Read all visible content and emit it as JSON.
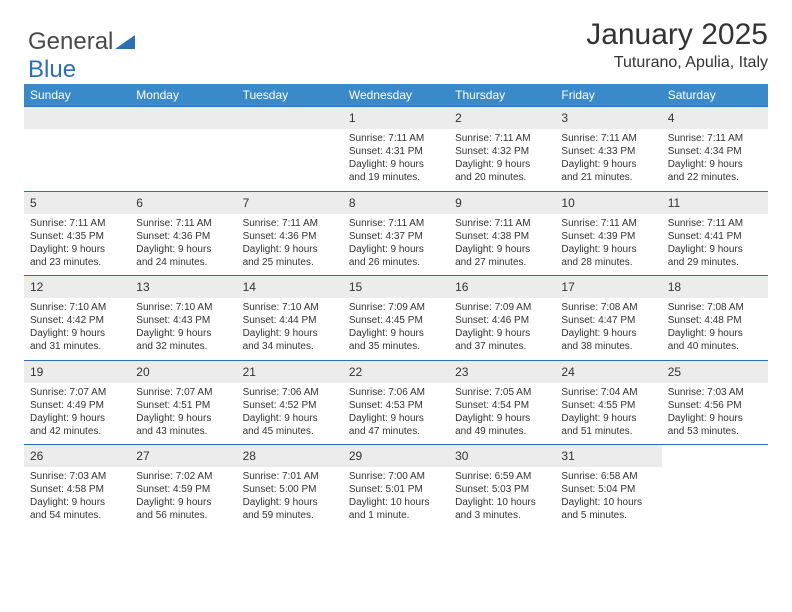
{
  "logo": {
    "text1": "General",
    "text2": "Blue"
  },
  "title": "January 2025",
  "subtitle": "Tuturano, Apulia, Italy",
  "colors": {
    "header_bg": "#3a8ac9",
    "header_border": "#2d6fb5",
    "daynum_bg": "#ececec",
    "text": "#333333",
    "logo_gray": "#4a4a4a",
    "logo_blue": "#2d6fb5"
  },
  "weekdays": [
    "Sunday",
    "Monday",
    "Tuesday",
    "Wednesday",
    "Thursday",
    "Friday",
    "Saturday"
  ],
  "weeks": [
    [
      null,
      null,
      null,
      {
        "n": "1",
        "sr": "Sunrise: 7:11 AM",
        "ss": "Sunset: 4:31 PM",
        "d1": "Daylight: 9 hours",
        "d2": "and 19 minutes."
      },
      {
        "n": "2",
        "sr": "Sunrise: 7:11 AM",
        "ss": "Sunset: 4:32 PM",
        "d1": "Daylight: 9 hours",
        "d2": "and 20 minutes."
      },
      {
        "n": "3",
        "sr": "Sunrise: 7:11 AM",
        "ss": "Sunset: 4:33 PM",
        "d1": "Daylight: 9 hours",
        "d2": "and 21 minutes."
      },
      {
        "n": "4",
        "sr": "Sunrise: 7:11 AM",
        "ss": "Sunset: 4:34 PM",
        "d1": "Daylight: 9 hours",
        "d2": "and 22 minutes."
      }
    ],
    [
      {
        "n": "5",
        "sr": "Sunrise: 7:11 AM",
        "ss": "Sunset: 4:35 PM",
        "d1": "Daylight: 9 hours",
        "d2": "and 23 minutes."
      },
      {
        "n": "6",
        "sr": "Sunrise: 7:11 AM",
        "ss": "Sunset: 4:36 PM",
        "d1": "Daylight: 9 hours",
        "d2": "and 24 minutes."
      },
      {
        "n": "7",
        "sr": "Sunrise: 7:11 AM",
        "ss": "Sunset: 4:36 PM",
        "d1": "Daylight: 9 hours",
        "d2": "and 25 minutes."
      },
      {
        "n": "8",
        "sr": "Sunrise: 7:11 AM",
        "ss": "Sunset: 4:37 PM",
        "d1": "Daylight: 9 hours",
        "d2": "and 26 minutes."
      },
      {
        "n": "9",
        "sr": "Sunrise: 7:11 AM",
        "ss": "Sunset: 4:38 PM",
        "d1": "Daylight: 9 hours",
        "d2": "and 27 minutes."
      },
      {
        "n": "10",
        "sr": "Sunrise: 7:11 AM",
        "ss": "Sunset: 4:39 PM",
        "d1": "Daylight: 9 hours",
        "d2": "and 28 minutes."
      },
      {
        "n": "11",
        "sr": "Sunrise: 7:11 AM",
        "ss": "Sunset: 4:41 PM",
        "d1": "Daylight: 9 hours",
        "d2": "and 29 minutes."
      }
    ],
    [
      {
        "n": "12",
        "sr": "Sunrise: 7:10 AM",
        "ss": "Sunset: 4:42 PM",
        "d1": "Daylight: 9 hours",
        "d2": "and 31 minutes."
      },
      {
        "n": "13",
        "sr": "Sunrise: 7:10 AM",
        "ss": "Sunset: 4:43 PM",
        "d1": "Daylight: 9 hours",
        "d2": "and 32 minutes."
      },
      {
        "n": "14",
        "sr": "Sunrise: 7:10 AM",
        "ss": "Sunset: 4:44 PM",
        "d1": "Daylight: 9 hours",
        "d2": "and 34 minutes."
      },
      {
        "n": "15",
        "sr": "Sunrise: 7:09 AM",
        "ss": "Sunset: 4:45 PM",
        "d1": "Daylight: 9 hours",
        "d2": "and 35 minutes."
      },
      {
        "n": "16",
        "sr": "Sunrise: 7:09 AM",
        "ss": "Sunset: 4:46 PM",
        "d1": "Daylight: 9 hours",
        "d2": "and 37 minutes."
      },
      {
        "n": "17",
        "sr": "Sunrise: 7:08 AM",
        "ss": "Sunset: 4:47 PM",
        "d1": "Daylight: 9 hours",
        "d2": "and 38 minutes."
      },
      {
        "n": "18",
        "sr": "Sunrise: 7:08 AM",
        "ss": "Sunset: 4:48 PM",
        "d1": "Daylight: 9 hours",
        "d2": "and 40 minutes."
      }
    ],
    [
      {
        "n": "19",
        "sr": "Sunrise: 7:07 AM",
        "ss": "Sunset: 4:49 PM",
        "d1": "Daylight: 9 hours",
        "d2": "and 42 minutes."
      },
      {
        "n": "20",
        "sr": "Sunrise: 7:07 AM",
        "ss": "Sunset: 4:51 PM",
        "d1": "Daylight: 9 hours",
        "d2": "and 43 minutes."
      },
      {
        "n": "21",
        "sr": "Sunrise: 7:06 AM",
        "ss": "Sunset: 4:52 PM",
        "d1": "Daylight: 9 hours",
        "d2": "and 45 minutes."
      },
      {
        "n": "22",
        "sr": "Sunrise: 7:06 AM",
        "ss": "Sunset: 4:53 PM",
        "d1": "Daylight: 9 hours",
        "d2": "and 47 minutes."
      },
      {
        "n": "23",
        "sr": "Sunrise: 7:05 AM",
        "ss": "Sunset: 4:54 PM",
        "d1": "Daylight: 9 hours",
        "d2": "and 49 minutes."
      },
      {
        "n": "24",
        "sr": "Sunrise: 7:04 AM",
        "ss": "Sunset: 4:55 PM",
        "d1": "Daylight: 9 hours",
        "d2": "and 51 minutes."
      },
      {
        "n": "25",
        "sr": "Sunrise: 7:03 AM",
        "ss": "Sunset: 4:56 PM",
        "d1": "Daylight: 9 hours",
        "d2": "and 53 minutes."
      }
    ],
    [
      {
        "n": "26",
        "sr": "Sunrise: 7:03 AM",
        "ss": "Sunset: 4:58 PM",
        "d1": "Daylight: 9 hours",
        "d2": "and 54 minutes."
      },
      {
        "n": "27",
        "sr": "Sunrise: 7:02 AM",
        "ss": "Sunset: 4:59 PM",
        "d1": "Daylight: 9 hours",
        "d2": "and 56 minutes."
      },
      {
        "n": "28",
        "sr": "Sunrise: 7:01 AM",
        "ss": "Sunset: 5:00 PM",
        "d1": "Daylight: 9 hours",
        "d2": "and 59 minutes."
      },
      {
        "n": "29",
        "sr": "Sunrise: 7:00 AM",
        "ss": "Sunset: 5:01 PM",
        "d1": "Daylight: 10 hours",
        "d2": "and 1 minute."
      },
      {
        "n": "30",
        "sr": "Sunrise: 6:59 AM",
        "ss": "Sunset: 5:03 PM",
        "d1": "Daylight: 10 hours",
        "d2": "and 3 minutes."
      },
      {
        "n": "31",
        "sr": "Sunrise: 6:58 AM",
        "ss": "Sunset: 5:04 PM",
        "d1": "Daylight: 10 hours",
        "d2": "and 5 minutes."
      },
      null
    ]
  ]
}
